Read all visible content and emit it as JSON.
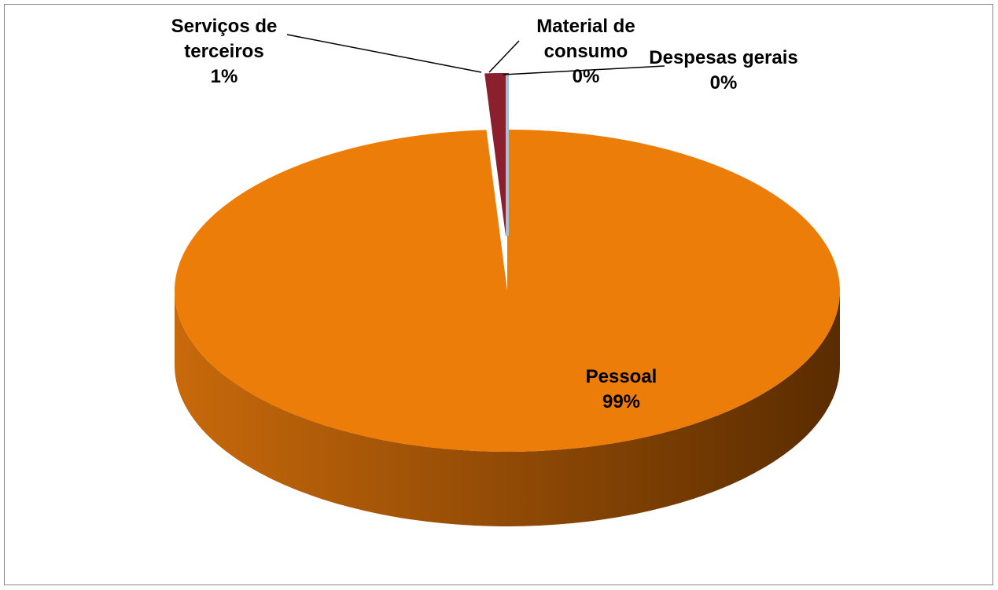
{
  "chart_data": {
    "type": "pie",
    "categories": [
      "Pessoal",
      "Serviços de terceiros",
      "Material de consumo",
      "Despesas gerais"
    ],
    "values": [
      99,
      1,
      0,
      0
    ],
    "value_labels": [
      "99%",
      "1%",
      "0%",
      "0%"
    ],
    "colors": [
      "#ed7d09",
      "#8a1f2e",
      "#1f5f7f",
      "#9fc3d6"
    ]
  }
}
